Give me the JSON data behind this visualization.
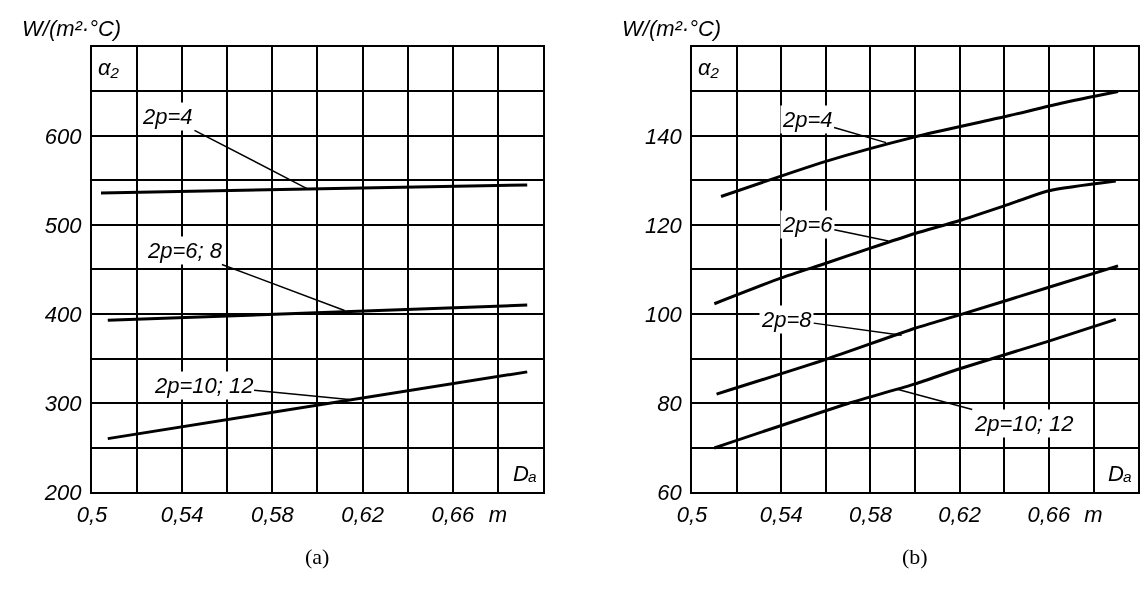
{
  "chart_data": [
    {
      "type": "line",
      "title": "W/(m²·°C)",
      "ylabel": "α₂",
      "xlabel": "Dₐ",
      "xlim": [
        0.5,
        0.7
      ],
      "xticks": [
        {
          "value": 0.5,
          "label": "0,5"
        },
        {
          "value": 0.52,
          "label": null
        },
        {
          "value": 0.54,
          "label": "0,54"
        },
        {
          "value": 0.56,
          "label": null
        },
        {
          "value": 0.58,
          "label": "0,58"
        },
        {
          "value": 0.6,
          "label": null
        },
        {
          "value": 0.62,
          "label": "0,62"
        },
        {
          "value": 0.64,
          "label": null
        },
        {
          "value": 0.66,
          "label": "0,66"
        },
        {
          "value": 0.68,
          "label": "m"
        }
      ],
      "ylim": [
        200,
        700
      ],
      "yticks": [
        200,
        {
          "value": 250,
          "label": null
        },
        300,
        {
          "value": 350,
          "label": null
        },
        400,
        {
          "value": 450,
          "label": null
        },
        500,
        {
          "value": 550,
          "label": null
        },
        600,
        {
          "value": 650,
          "label": null
        }
      ],
      "grid": true,
      "marker": "none",
      "line_style": "solid",
      "series": [
        {
          "color": "#000000",
          "x": [
            0.504,
            0.693
          ],
          "values": [
            536,
            545
          ]
        },
        {
          "color": "#000000",
          "x": [
            0.507,
            0.693
          ],
          "values": [
            393,
            410
          ]
        },
        {
          "color": "#000000",
          "x": [
            0.507,
            0.693
          ],
          "values": [
            260,
            335
          ]
        }
      ],
      "annotations": [
        {
          "text": "2p=4",
          "x": 0.596,
          "y": 540
        },
        {
          "text": "2p=6; 8",
          "x": 0.612,
          "y": 404
        },
        {
          "text": "2p=10; 12",
          "x": 0.614,
          "y": 304
        },
        "(a)"
      ]
    },
    {
      "type": "line",
      "title": "W/(m²·°C)",
      "ylabel": "α₂",
      "xlabel": "Dₐ",
      "xlim": [
        0.5,
        0.7
      ],
      "xticks": [
        {
          "value": 0.5,
          "label": "0,5"
        },
        {
          "value": 0.52,
          "label": null
        },
        {
          "value": 0.54,
          "label": "0,54"
        },
        {
          "value": 0.56,
          "label": null
        },
        {
          "value": 0.58,
          "label": "0,58"
        },
        {
          "value": 0.6,
          "label": null
        },
        {
          "value": 0.62,
          "label": "0,62"
        },
        {
          "value": 0.64,
          "label": null
        },
        {
          "value": 0.66,
          "label": "0,66"
        },
        {
          "value": 0.68,
          "label": "m"
        }
      ],
      "ylim": [
        60,
        160
      ],
      "yticks": [
        60,
        {
          "value": 70,
          "label": null
        },
        80,
        {
          "value": 90,
          "label": null
        },
        100,
        {
          "value": 110,
          "label": null
        },
        120,
        {
          "value": 130,
          "label": null
        },
        140,
        {
          "value": 150,
          "label": null
        }
      ],
      "grid": true,
      "marker": "none",
      "line_style": "solid",
      "series": [
        {
          "color": "#000000",
          "x": [
            0.513,
            0.56,
            0.6,
            0.64,
            0.665,
            0.691
          ],
          "values": [
            126.4,
            134.3,
            139.8,
            144.3,
            147.3,
            150
          ]
        },
        {
          "color": "#000000",
          "x": [
            0.51,
            0.54,
            0.56,
            0.58,
            0.6,
            0.62,
            0.64,
            0.66,
            0.69
          ],
          "values": [
            102.3,
            108.1,
            111.4,
            114.8,
            118.1,
            121,
            124.3,
            127.7,
            129.9
          ]
        },
        {
          "color": "#000000",
          "x": [
            0.511,
            0.56,
            0.6,
            0.62,
            0.66,
            0.691
          ],
          "values": [
            82,
            89.8,
            96.8,
            99.8,
            106,
            110.8
          ]
        },
        {
          "color": "#000000",
          "x": [
            0.51,
            0.57,
            0.6,
            0.62,
            0.66,
            0.69
          ],
          "values": [
            69.9,
            79.9,
            84.3,
            87.7,
            93.9,
            98.8
          ]
        }
      ],
      "annotations": [
        {
          "text": "2p=4",
          "x": 0.587,
          "y": 138.5
        },
        {
          "text": "2p=6",
          "x": 0.588,
          "y": 116.4
        },
        {
          "text": "2p=8",
          "x": 0.594,
          "y": 95.2
        },
        {
          "text": "2p=10; 12",
          "x": 0.592,
          "y": 83.1
        },
        "(b)"
      ]
    }
  ]
}
